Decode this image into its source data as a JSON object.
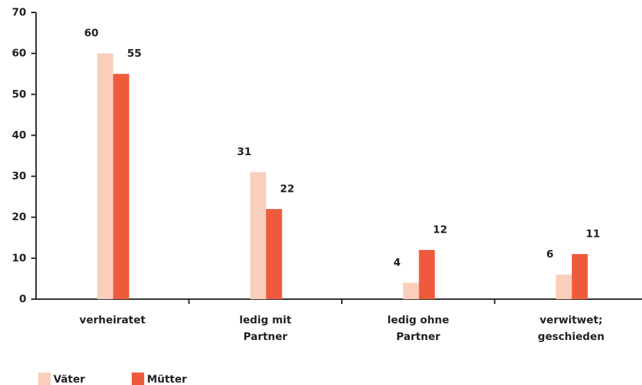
{
  "chart_data": {
    "type": "bar",
    "categories": [
      "verheiratet",
      "ledig mit\nPartner",
      "ledig ohne\nPartner",
      "verwitwet;\ngeschieden"
    ],
    "series": [
      {
        "name": "Väter",
        "color": "#f9cfbb",
        "values": [
          60,
          31,
          4,
          6
        ]
      },
      {
        "name": "Mütter",
        "color": "#ef5a3c",
        "values": [
          55,
          22,
          12,
          11
        ]
      }
    ],
    "ylim": [
      0,
      70
    ],
    "yticks": [
      0,
      10,
      20,
      30,
      40,
      50,
      60,
      70
    ],
    "legend": "bottom-left"
  }
}
